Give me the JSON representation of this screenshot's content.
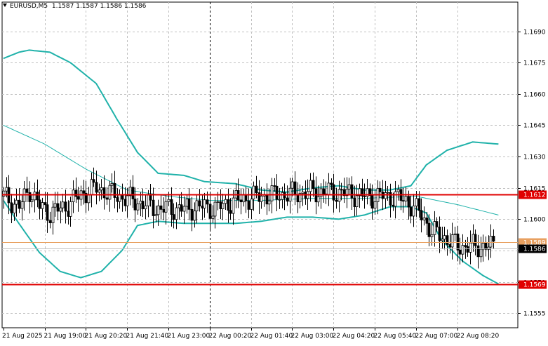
{
  "header": {
    "symbol": "EURUSD,M5",
    "ohlc": "1.1587 1.1587 1.1586 1.1586"
  },
  "colors": {
    "background": "#ffffff",
    "grid": "#c0c0c0",
    "candle": "#000000",
    "bollinger": "#20b2aa",
    "moving_average": "#20b2aa",
    "support_resistance": "#e00000",
    "upper_level": "#e8a060",
    "price_tag_red": "#e00000",
    "price_tag_black": "#000000"
  },
  "chart_data": {
    "type": "candlestick",
    "symbol": "EURUSD",
    "timeframe": "M5",
    "y_range": [
      1.1548,
      1.1704
    ],
    "y_ticks": [
      "1.1690",
      "1.1675",
      "1.1660",
      "1.1645",
      "1.1630",
      "1.1615",
      "1.1600",
      "1.1585",
      "1.1570",
      "1.1555"
    ],
    "y_tick_values": [
      1.169,
      1.1675,
      1.166,
      1.1645,
      1.163,
      1.1615,
      1.16,
      1.1585,
      1.157,
      1.1555
    ],
    "x_labels": [
      "21 Aug 2025",
      "21 Aug 19:00",
      "21 Aug 20:20",
      "21 Aug 21:40",
      "21 Aug 23:00",
      "22 Aug 00:20",
      "22 Aug 01:40",
      "22 Aug 03:00",
      "22 Aug 04:20",
      "22 Aug 05:40",
      "22 Aug 07:00",
      "22 Aug 08:20"
    ],
    "bar_count": 200,
    "bars_per_label": 16,
    "session_separator_bar": 80,
    "levels": [
      {
        "label": "1.1612",
        "value": 1.1612,
        "style": "resistance"
      },
      {
        "label": "1.1589",
        "value": 1.1589,
        "style": "upper"
      },
      {
        "label": "1.1569",
        "value": 1.1569,
        "style": "support"
      }
    ],
    "current_price": {
      "label": "1.1586",
      "value": 1.1586
    },
    "candle_anchors": [
      {
        "bar": 0,
        "price": 1.1611
      },
      {
        "bar": 6,
        "price": 1.1606
      },
      {
        "bar": 10,
        "price": 1.1614
      },
      {
        "bar": 14,
        "price": 1.1606
      },
      {
        "bar": 18,
        "price": 1.1603
      },
      {
        "bar": 24,
        "price": 1.1606
      },
      {
        "bar": 30,
        "price": 1.1612
      },
      {
        "bar": 36,
        "price": 1.1615
      },
      {
        "bar": 42,
        "price": 1.1612
      },
      {
        "bar": 50,
        "price": 1.1609
      },
      {
        "bar": 60,
        "price": 1.1605
      },
      {
        "bar": 70,
        "price": 1.1605
      },
      {
        "bar": 78,
        "price": 1.1606
      },
      {
        "bar": 82,
        "price": 1.1605
      },
      {
        "bar": 90,
        "price": 1.1609
      },
      {
        "bar": 100,
        "price": 1.1611
      },
      {
        "bar": 110,
        "price": 1.1612
      },
      {
        "bar": 120,
        "price": 1.1613
      },
      {
        "bar": 130,
        "price": 1.1613
      },
      {
        "bar": 140,
        "price": 1.1611
      },
      {
        "bar": 150,
        "price": 1.1611
      },
      {
        "bar": 156,
        "price": 1.1609
      },
      {
        "bar": 162,
        "price": 1.1602
      },
      {
        "bar": 166,
        "price": 1.1594
      },
      {
        "bar": 170,
        "price": 1.1592
      },
      {
        "bar": 176,
        "price": 1.1587
      },
      {
        "bar": 182,
        "price": 1.1587
      },
      {
        "bar": 190,
        "price": 1.1587
      }
    ],
    "bollinger_upper": [
      {
        "bar": 0,
        "price": 1.1677
      },
      {
        "bar": 6,
        "price": 1.168
      },
      {
        "bar": 10,
        "price": 1.1681
      },
      {
        "bar": 18,
        "price": 1.168
      },
      {
        "bar": 26,
        "price": 1.1675
      },
      {
        "bar": 36,
        "price": 1.1665
      },
      {
        "bar": 44,
        "price": 1.1648
      },
      {
        "bar": 52,
        "price": 1.1632
      },
      {
        "bar": 60,
        "price": 1.1622
      },
      {
        "bar": 70,
        "price": 1.1621
      },
      {
        "bar": 78,
        "price": 1.1618
      },
      {
        "bar": 90,
        "price": 1.1617
      },
      {
        "bar": 100,
        "price": 1.1614
      },
      {
        "bar": 110,
        "price": 1.1613
      },
      {
        "bar": 120,
        "price": 1.1615
      },
      {
        "bar": 130,
        "price": 1.1616
      },
      {
        "bar": 140,
        "price": 1.1614
      },
      {
        "bar": 150,
        "price": 1.1614
      },
      {
        "bar": 158,
        "price": 1.1616
      },
      {
        "bar": 164,
        "price": 1.1626
      },
      {
        "bar": 172,
        "price": 1.1633
      },
      {
        "bar": 182,
        "price": 1.1637
      },
      {
        "bar": 192,
        "price": 1.1636
      }
    ],
    "bollinger_lower": [
      {
        "bar": 0,
        "price": 1.1609
      },
      {
        "bar": 6,
        "price": 1.1598
      },
      {
        "bar": 14,
        "price": 1.1584
      },
      {
        "bar": 22,
        "price": 1.1575
      },
      {
        "bar": 30,
        "price": 1.1572
      },
      {
        "bar": 38,
        "price": 1.1575
      },
      {
        "bar": 46,
        "price": 1.1585
      },
      {
        "bar": 52,
        "price": 1.1597
      },
      {
        "bar": 60,
        "price": 1.1599
      },
      {
        "bar": 70,
        "price": 1.1598
      },
      {
        "bar": 80,
        "price": 1.1598
      },
      {
        "bar": 90,
        "price": 1.1598
      },
      {
        "bar": 100,
        "price": 1.1599
      },
      {
        "bar": 110,
        "price": 1.1601
      },
      {
        "bar": 120,
        "price": 1.1601
      },
      {
        "bar": 130,
        "price": 1.16
      },
      {
        "bar": 140,
        "price": 1.1602
      },
      {
        "bar": 150,
        "price": 1.1606
      },
      {
        "bar": 158,
        "price": 1.1606
      },
      {
        "bar": 164,
        "price": 1.1603
      },
      {
        "bar": 170,
        "price": 1.159
      },
      {
        "bar": 178,
        "price": 1.158
      },
      {
        "bar": 186,
        "price": 1.1573
      },
      {
        "bar": 192,
        "price": 1.1569
      }
    ],
    "moving_average": [
      {
        "bar": 0,
        "price": 1.1645
      },
      {
        "bar": 16,
        "price": 1.1636
      },
      {
        "bar": 32,
        "price": 1.1624
      },
      {
        "bar": 48,
        "price": 1.1614
      },
      {
        "bar": 64,
        "price": 1.1611
      },
      {
        "bar": 80,
        "price": 1.1609
      },
      {
        "bar": 100,
        "price": 1.1609
      },
      {
        "bar": 120,
        "price": 1.161
      },
      {
        "bar": 140,
        "price": 1.161
      },
      {
        "bar": 160,
        "price": 1.1611
      },
      {
        "bar": 176,
        "price": 1.1607
      },
      {
        "bar": 192,
        "price": 1.1602
      }
    ]
  }
}
